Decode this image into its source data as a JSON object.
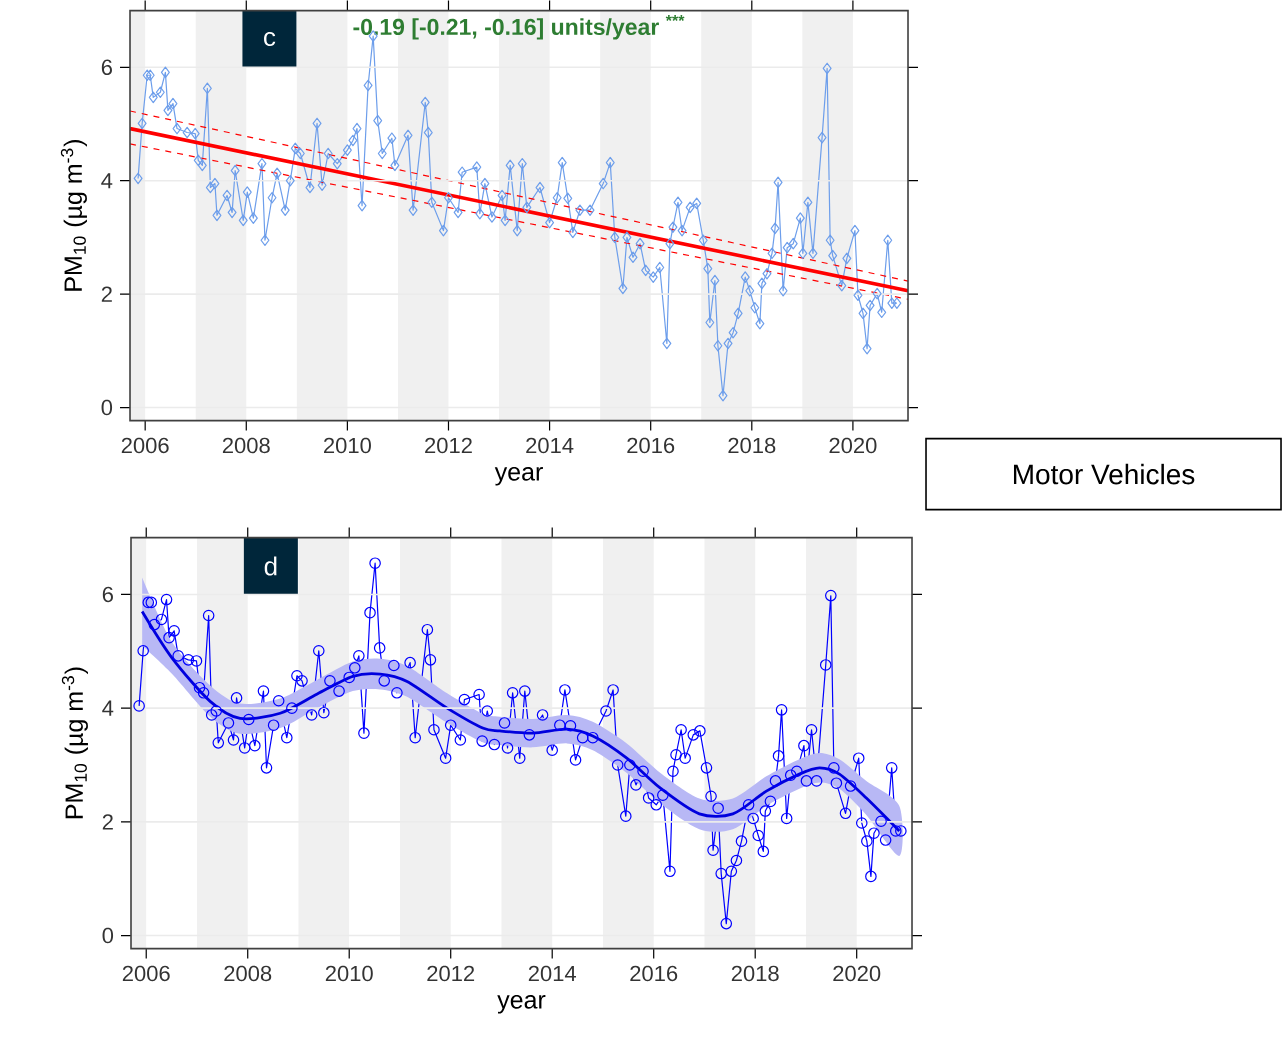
{
  "chart_data": [
    {
      "type": "line",
      "xlabel": "year",
      "ylabel": "PM$_{10}$ (µg m$^{-3}$)",
      "xlim": [
        2005.7,
        2021.09
      ],
      "ylim": [
        -0.23,
        7.0
      ],
      "xticks": [
        2006,
        2008,
        2010,
        2012,
        2014,
        2016,
        2018,
        2020
      ],
      "yticks": [
        0,
        2,
        4,
        6
      ],
      "grid": "y",
      "annotations": [
        "c",
        "-0.19 [-0.21, -0.16] units/year $^{***}$"
      ],
      "bands": [
        {
          "axis": "x",
          "from": 2005.7,
          "to": 2006,
          "color": "#f0f0f0"
        },
        {
          "axis": "x",
          "from": 2007,
          "to": 2008,
          "color": "#f0f0f0"
        },
        {
          "axis": "x",
          "from": 2009,
          "to": 2010,
          "color": "#f0f0f0"
        },
        {
          "axis": "x",
          "from": 2011,
          "to": 2012,
          "color": "#f0f0f0"
        },
        {
          "axis": "x",
          "from": 2013,
          "to": 2014,
          "color": "#f0f0f0"
        },
        {
          "axis": "x",
          "from": 2015,
          "to": 2016,
          "color": "#f0f0f0"
        },
        {
          "axis": "x",
          "from": 2017,
          "to": 2018,
          "color": "#f0f0f0"
        },
        {
          "axis": "x",
          "from": 2019,
          "to": 2020,
          "color": "#f0f0f0"
        }
      ],
      "series": [
        {
          "color": "#6d9eeb",
          "marker": "diamond",
          "line_style": "solid",
          "x": [
            2005.86,
            2005.94,
            2006.04,
            2006.1,
            2006.16,
            2006.3,
            2006.4,
            2006.45,
            2006.55,
            2006.63,
            2006.83,
            2006.99,
            2007.05,
            2007.13,
            2007.23,
            2007.29,
            2007.38,
            2007.42,
            2007.62,
            2007.72,
            2007.78,
            2007.94,
            2008.02,
            2008.14,
            2008.31,
            2008.37,
            2008.51,
            2008.61,
            2008.77,
            2008.87,
            2008.97,
            2009.07,
            2009.26,
            2009.4,
            2009.5,
            2009.62,
            2009.8,
            2010.0,
            2010.11,
            2010.19,
            2010.29,
            2010.41,
            2010.51,
            2010.6,
            2010.69,
            2010.88,
            2010.94,
            2011.2,
            2011.3,
            2011.54,
            2011.6,
            2011.67,
            2011.9,
            2012.0,
            2012.19,
            2012.27,
            2012.56,
            2012.62,
            2012.72,
            2012.86,
            2013.06,
            2013.12,
            2013.22,
            2013.36,
            2013.46,
            2013.55,
            2013.81,
            2014.0,
            2014.15,
            2014.25,
            2014.36,
            2014.46,
            2014.6,
            2014.8,
            2015.06,
            2015.2,
            2015.29,
            2015.45,
            2015.53,
            2015.65,
            2015.79,
            2015.9,
            2016.05,
            2016.18,
            2016.32,
            2016.38,
            2016.44,
            2016.54,
            2016.62,
            2016.78,
            2016.91,
            2017.04,
            2017.13,
            2017.17,
            2017.27,
            2017.33,
            2017.43,
            2017.53,
            2017.63,
            2017.73,
            2017.87,
            2017.96,
            2018.06,
            2018.16,
            2018.2,
            2018.3,
            2018.4,
            2018.46,
            2018.52,
            2018.62,
            2018.7,
            2018.82,
            2018.96,
            2019.01,
            2019.11,
            2019.21,
            2019.39,
            2019.49,
            2019.55,
            2019.6,
            2019.78,
            2019.88,
            2020.04,
            2020.1,
            2020.2,
            2020.28,
            2020.34,
            2020.48,
            2020.57,
            2020.69,
            2020.77,
            2020.87
          ],
          "values": [
            4.04,
            5.01,
            5.86,
            5.86,
            5.47,
            5.56,
            5.91,
            5.24,
            5.36,
            4.92,
            4.85,
            4.83,
            4.36,
            4.27,
            5.63,
            3.88,
            3.95,
            3.39,
            3.74,
            3.44,
            4.18,
            3.3,
            3.8,
            3.34,
            4.3,
            2.95,
            3.7,
            4.13,
            3.48,
            4.0,
            4.57,
            4.48,
            3.88,
            5.01,
            3.92,
            4.48,
            4.3,
            4.54,
            4.71,
            4.92,
            3.56,
            5.68,
            6.55,
            5.06,
            4.48,
            4.75,
            4.27,
            4.8,
            3.48,
            5.38,
            4.85,
            3.62,
            3.12,
            3.7,
            3.44,
            4.15,
            4.24,
            3.42,
            3.95,
            3.36,
            3.74,
            3.3,
            4.27,
            3.12,
            4.3,
            3.53,
            3.88,
            3.26,
            3.7,
            4.32,
            3.69,
            3.09,
            3.48,
            3.48,
            3.95,
            4.32,
            3.0,
            2.1,
            3.0,
            2.65,
            2.89,
            2.42,
            2.3,
            2.47,
            1.13,
            2.89,
            3.18,
            3.62,
            3.12,
            3.53,
            3.6,
            2.95,
            2.45,
            1.5,
            2.24,
            1.09,
            0.21,
            1.13,
            1.32,
            1.66,
            2.3,
            2.06,
            1.76,
            1.48,
            2.19,
            2.36,
            2.72,
            3.16,
            3.97,
            2.06,
            2.82,
            2.89,
            3.34,
            2.72,
            3.62,
            2.72,
            4.76,
            5.98,
            2.95,
            2.68,
            2.15,
            2.63,
            3.12,
            1.98,
            1.66,
            1.04,
            1.8,
            2.01,
            1.68,
            2.95,
            1.84,
            1.84
          ]
        },
        {
          "color": "#ff0000",
          "marker": "none",
          "line_style": "solid",
          "x": [
            2005.7,
            2021.09
          ],
          "values": [
            4.92,
            2.06
          ]
        },
        {
          "color": "#ff0000",
          "marker": "none",
          "line_style": "dashed",
          "x": [
            2005.7,
            2021.09
          ],
          "values": [
            5.23,
            2.23
          ]
        },
        {
          "color": "#ff0000",
          "marker": "none",
          "line_style": "dashed",
          "x": [
            2005.7,
            2021.09
          ],
          "values": [
            4.65,
            1.91
          ]
        }
      ]
    },
    {
      "type": "other",
      "title": "Motor Vehicles"
    },
    {
      "type": "line",
      "xlabel": "year",
      "ylabel": "PM$_{10}$ (µg m$^{-3}$)",
      "xlim": [
        2005.7,
        2021.09
      ],
      "ylim": [
        -0.23,
        7.0
      ],
      "xticks": [
        2006,
        2008,
        2010,
        2012,
        2014,
        2016,
        2018,
        2020
      ],
      "yticks": [
        0,
        2,
        4,
        6
      ],
      "grid": "y",
      "annotations": [
        "d"
      ],
      "bands": [
        {
          "axis": "x",
          "from": 2005.7,
          "to": 2006,
          "color": "#f0f0f0"
        },
        {
          "axis": "x",
          "from": 2007,
          "to": 2008,
          "color": "#f0f0f0"
        },
        {
          "axis": "x",
          "from": 2009,
          "to": 2010,
          "color": "#f0f0f0"
        },
        {
          "axis": "x",
          "from": 2011,
          "to": 2012,
          "color": "#f0f0f0"
        },
        {
          "axis": "x",
          "from": 2013,
          "to": 2014,
          "color": "#f0f0f0"
        },
        {
          "axis": "x",
          "from": 2015,
          "to": 2016,
          "color": "#f0f0f0"
        },
        {
          "axis": "x",
          "from": 2017,
          "to": 2018,
          "color": "#f0f0f0"
        },
        {
          "axis": "x",
          "from": 2019,
          "to": 2020,
          "color": "#f0f0f0"
        }
      ],
      "series": [
        {
          "color": "#0000ff",
          "marker": "circle",
          "line_style": "solid",
          "x": [
            2005.86,
            2005.94,
            2006.04,
            2006.1,
            2006.16,
            2006.3,
            2006.4,
            2006.45,
            2006.55,
            2006.63,
            2006.83,
            2006.99,
            2007.05,
            2007.13,
            2007.23,
            2007.29,
            2007.38,
            2007.42,
            2007.62,
            2007.72,
            2007.78,
            2007.94,
            2008.02,
            2008.14,
            2008.31,
            2008.37,
            2008.51,
            2008.61,
            2008.77,
            2008.87,
            2008.97,
            2009.07,
            2009.26,
            2009.4,
            2009.5,
            2009.62,
            2009.8,
            2010.0,
            2010.11,
            2010.19,
            2010.29,
            2010.41,
            2010.51,
            2010.6,
            2010.69,
            2010.88,
            2010.94,
            2011.2,
            2011.3,
            2011.54,
            2011.6,
            2011.67,
            2011.9,
            2012.0,
            2012.19,
            2012.27,
            2012.56,
            2012.62,
            2012.72,
            2012.86,
            2013.06,
            2013.12,
            2013.22,
            2013.36,
            2013.46,
            2013.55,
            2013.81,
            2014.0,
            2014.15,
            2014.25,
            2014.36,
            2014.46,
            2014.6,
            2014.8,
            2015.06,
            2015.2,
            2015.29,
            2015.45,
            2015.53,
            2015.65,
            2015.79,
            2015.9,
            2016.05,
            2016.18,
            2016.32,
            2016.38,
            2016.44,
            2016.54,
            2016.62,
            2016.78,
            2016.91,
            2017.04,
            2017.13,
            2017.17,
            2017.27,
            2017.33,
            2017.43,
            2017.53,
            2017.63,
            2017.73,
            2017.87,
            2017.96,
            2018.06,
            2018.16,
            2018.2,
            2018.3,
            2018.4,
            2018.46,
            2018.52,
            2018.62,
            2018.7,
            2018.82,
            2018.96,
            2019.01,
            2019.11,
            2019.21,
            2019.39,
            2019.49,
            2019.55,
            2019.6,
            2019.78,
            2019.88,
            2020.04,
            2020.1,
            2020.2,
            2020.28,
            2020.34,
            2020.48,
            2020.57,
            2020.69,
            2020.77,
            2020.87
          ],
          "values": [
            4.04,
            5.01,
            5.86,
            5.86,
            5.47,
            5.56,
            5.91,
            5.24,
            5.36,
            4.92,
            4.85,
            4.83,
            4.36,
            4.27,
            5.63,
            3.88,
            3.95,
            3.39,
            3.74,
            3.44,
            4.18,
            3.3,
            3.8,
            3.34,
            4.3,
            2.95,
            3.7,
            4.13,
            3.48,
            4.0,
            4.57,
            4.48,
            3.88,
            5.01,
            3.92,
            4.48,
            4.3,
            4.54,
            4.71,
            4.92,
            3.56,
            5.68,
            6.55,
            5.06,
            4.48,
            4.75,
            4.27,
            4.8,
            3.48,
            5.38,
            4.85,
            3.62,
            3.12,
            3.7,
            3.44,
            4.15,
            4.24,
            3.42,
            3.95,
            3.36,
            3.74,
            3.3,
            4.27,
            3.12,
            4.3,
            3.53,
            3.88,
            3.26,
            3.7,
            4.32,
            3.69,
            3.09,
            3.48,
            3.48,
            3.95,
            4.32,
            3.0,
            2.1,
            3.0,
            2.65,
            2.89,
            2.42,
            2.3,
            2.47,
            1.13,
            2.89,
            3.18,
            3.62,
            3.12,
            3.53,
            3.6,
            2.95,
            2.45,
            1.5,
            2.24,
            1.09,
            0.21,
            1.13,
            1.32,
            1.66,
            2.3,
            2.06,
            1.76,
            1.48,
            2.19,
            2.36,
            2.72,
            3.16,
            3.97,
            2.06,
            2.82,
            2.89,
            3.34,
            2.72,
            3.62,
            2.72,
            4.76,
            5.98,
            2.95,
            2.68,
            2.15,
            2.63,
            3.12,
            1.98,
            1.66,
            1.04,
            1.8,
            2.01,
            1.68,
            2.95,
            1.84,
            1.84
          ]
        },
        {
          "color": "#0000dd",
          "marker": "none",
          "line_style": "solid",
          "x": [
            2005.92,
            2006.51,
            2007.26,
            2007.85,
            2008.64,
            2009.37,
            2010.07,
            2010.61,
            2011.14,
            2011.93,
            2012.63,
            2012.97,
            2013.62,
            2014.29,
            2014.8,
            2015.47,
            2016.12,
            2016.9,
            2017.56,
            2018.22,
            2018.87,
            2019.27,
            2019.66,
            2020.19,
            2020.84
          ],
          "values": [
            5.7,
            4.88,
            4.12,
            3.82,
            3.91,
            4.25,
            4.56,
            4.6,
            4.47,
            4.0,
            3.65,
            3.6,
            3.56,
            3.63,
            3.51,
            3.12,
            2.6,
            2.14,
            2.14,
            2.54,
            2.84,
            2.95,
            2.84,
            2.42,
            1.84
          ],
          "lower": [
            5.1,
            4.6,
            3.85,
            3.55,
            3.65,
            4.0,
            4.3,
            4.33,
            4.2,
            3.74,
            3.4,
            3.35,
            3.31,
            3.38,
            3.26,
            2.86,
            2.33,
            1.87,
            1.87,
            2.28,
            2.58,
            2.69,
            2.58,
            2.12,
            1.4
          ],
          "upper": [
            6.3,
            5.16,
            4.4,
            4.08,
            4.17,
            4.5,
            4.82,
            4.87,
            4.74,
            4.26,
            3.9,
            3.85,
            3.81,
            3.88,
            3.76,
            3.38,
            2.87,
            2.41,
            2.41,
            2.8,
            3.1,
            3.21,
            3.1,
            2.72,
            2.28
          ]
        }
      ]
    }
  ]
}
